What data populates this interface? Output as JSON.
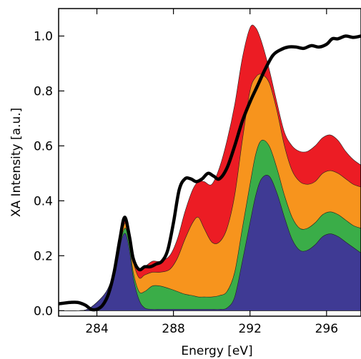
{
  "chart_data": {
    "type": "area",
    "xlabel": "Energy [eV]",
    "ylabel": "XA Intensity [a.u.]",
    "xlim": [
      282,
      297.8
    ],
    "ylim": [
      -0.02,
      1.1
    ],
    "x_ticks": [
      284,
      288,
      292,
      296
    ],
    "x_tick_labels": [
      "284",
      "288",
      "292",
      "296"
    ],
    "y_ticks": [
      0.0,
      0.2,
      0.4,
      0.6,
      0.8,
      1.0
    ],
    "y_tick_labels": [
      "0.0",
      "0.2",
      "0.4",
      "0.6",
      "0.8",
      "1.0"
    ],
    "grid": false,
    "colors": {
      "red": "#ec1c24",
      "orange": "#f7941d",
      "green": "#3aad48",
      "blue": "#3f3a94",
      "line": "#000000"
    },
    "x": [
      282.0,
      283.0,
      283.5,
      284.0,
      284.5,
      284.8,
      285.1,
      285.3,
      285.5,
      285.7,
      285.9,
      286.2,
      286.5,
      286.9,
      287.3,
      287.8,
      288.2,
      288.6,
      289.0,
      289.3,
      289.6,
      290.0,
      290.4,
      290.8,
      291.2,
      291.6,
      292.0,
      292.3,
      292.6,
      293.0,
      293.4,
      293.8,
      294.2,
      294.6,
      295.0,
      295.4,
      295.8,
      296.2,
      296.6,
      297.0,
      297.4,
      297.8
    ],
    "series": [
      {
        "color_key": "blue",
        "values": [
          0,
          0,
          0.005,
          0.03,
          0.07,
          0.12,
          0.19,
          0.26,
          0.28,
          0.22,
          0.12,
          0.04,
          0.01,
          0.005,
          0.005,
          0.005,
          0.005,
          0.005,
          0.005,
          0.005,
          0.005,
          0.005,
          0.005,
          0.01,
          0.05,
          0.18,
          0.32,
          0.42,
          0.48,
          0.49,
          0.43,
          0.34,
          0.26,
          0.22,
          0.22,
          0.24,
          0.27,
          0.28,
          0.27,
          0.25,
          0.23,
          0.21
        ]
      },
      {
        "color_key": "green",
        "values": [
          0,
          0,
          0.005,
          0.03,
          0.07,
          0.12,
          0.2,
          0.27,
          0.3,
          0.24,
          0.14,
          0.07,
          0.07,
          0.09,
          0.09,
          0.08,
          0.07,
          0.06,
          0.055,
          0.05,
          0.05,
          0.05,
          0.055,
          0.07,
          0.14,
          0.3,
          0.46,
          0.57,
          0.62,
          0.6,
          0.52,
          0.42,
          0.34,
          0.3,
          0.3,
          0.32,
          0.35,
          0.36,
          0.35,
          0.33,
          0.31,
          0.3
        ]
      },
      {
        "color_key": "orange",
        "values": [
          0,
          0,
          0.005,
          0.03,
          0.07,
          0.12,
          0.2,
          0.28,
          0.32,
          0.27,
          0.18,
          0.12,
          0.13,
          0.14,
          0.14,
          0.15,
          0.19,
          0.26,
          0.32,
          0.34,
          0.3,
          0.25,
          0.25,
          0.3,
          0.42,
          0.62,
          0.8,
          0.85,
          0.86,
          0.83,
          0.73,
          0.6,
          0.51,
          0.47,
          0.46,
          0.47,
          0.5,
          0.51,
          0.5,
          0.48,
          0.46,
          0.45
        ]
      },
      {
        "color_key": "red",
        "values": [
          0,
          0,
          0.005,
          0.03,
          0.07,
          0.12,
          0.21,
          0.29,
          0.34,
          0.29,
          0.2,
          0.15,
          0.16,
          0.18,
          0.18,
          0.2,
          0.26,
          0.36,
          0.44,
          0.47,
          0.47,
          0.46,
          0.52,
          0.62,
          0.75,
          0.92,
          1.03,
          1.03,
          0.98,
          0.88,
          0.76,
          0.65,
          0.6,
          0.58,
          0.58,
          0.6,
          0.63,
          0.64,
          0.62,
          0.58,
          0.55,
          0.53
        ]
      }
    ],
    "line": {
      "color_key": "line",
      "points": [
        [
          282.0,
          0.025
        ],
        [
          282.6,
          0.03
        ],
        [
          283.0,
          0.03
        ],
        [
          283.4,
          0.02
        ],
        [
          283.7,
          0.005
        ],
        [
          284.0,
          0.005
        ],
        [
          284.3,
          0.02
        ],
        [
          284.6,
          0.06
        ],
        [
          284.9,
          0.14
        ],
        [
          285.2,
          0.26
        ],
        [
          285.45,
          0.34
        ],
        [
          285.7,
          0.27
        ],
        [
          285.9,
          0.19
        ],
        [
          286.2,
          0.15
        ],
        [
          286.5,
          0.16
        ],
        [
          286.8,
          0.16
        ],
        [
          287.1,
          0.17
        ],
        [
          287.4,
          0.18
        ],
        [
          287.7,
          0.22
        ],
        [
          288.0,
          0.32
        ],
        [
          288.3,
          0.44
        ],
        [
          288.6,
          0.48
        ],
        [
          288.9,
          0.48
        ],
        [
          289.2,
          0.47
        ],
        [
          289.5,
          0.48
        ],
        [
          289.8,
          0.5
        ],
        [
          290.1,
          0.49
        ],
        [
          290.4,
          0.48
        ],
        [
          290.8,
          0.52
        ],
        [
          291.2,
          0.6
        ],
        [
          291.6,
          0.69
        ],
        [
          292.0,
          0.76
        ],
        [
          292.4,
          0.82
        ],
        [
          292.8,
          0.88
        ],
        [
          293.2,
          0.93
        ],
        [
          293.6,
          0.95
        ],
        [
          294.0,
          0.96
        ],
        [
          294.4,
          0.96
        ],
        [
          294.8,
          0.955
        ],
        [
          295.2,
          0.965
        ],
        [
          295.6,
          0.96
        ],
        [
          296.0,
          0.97
        ],
        [
          296.3,
          0.99
        ],
        [
          296.6,
          0.99
        ],
        [
          297.0,
          1.0
        ],
        [
          297.4,
          0.995
        ],
        [
          297.8,
          1.0
        ]
      ]
    }
  }
}
